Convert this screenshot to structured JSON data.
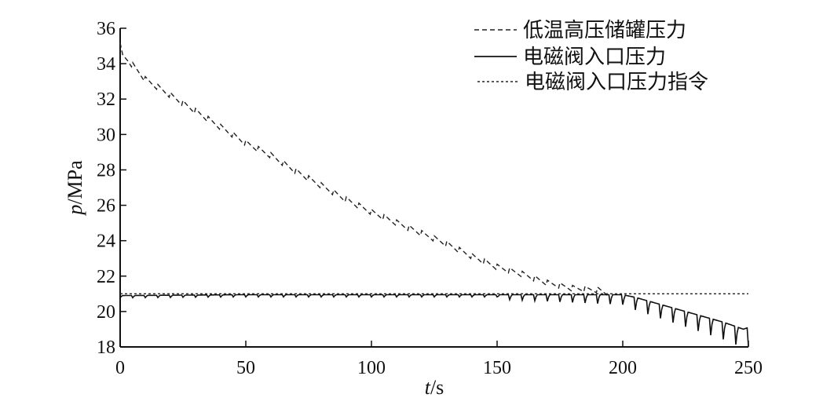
{
  "chart_data": {
    "type": "line",
    "title": "",
    "xlabel": {
      "var": "t",
      "unit": "/s"
    },
    "ylabel": {
      "var": "p",
      "unit": "/MPa"
    },
    "xlim": [
      0,
      250
    ],
    "ylim": [
      18,
      36
    ],
    "xticks": [
      0,
      50,
      100,
      150,
      200,
      250
    ],
    "yticks": [
      18,
      20,
      22,
      24,
      26,
      28,
      30,
      32,
      34,
      36
    ],
    "grid": false,
    "legend": "top-right",
    "series": [
      {
        "name": "低温高压储罐压力",
        "style": "dashed",
        "color": "#222222",
        "x": [
          0,
          1,
          3,
          10,
          20,
          30,
          40,
          50,
          60,
          70,
          80,
          90,
          100,
          110,
          120,
          130,
          140,
          150,
          160,
          170,
          180,
          190,
          194
        ],
        "y": [
          35.0,
          34.4,
          34.2,
          33.1,
          32.2,
          31.3,
          30.4,
          29.5,
          28.8,
          27.9,
          27.1,
          26.3,
          25.6,
          25.0,
          24.4,
          23.8,
          23.1,
          22.5,
          22.1,
          21.6,
          21.3,
          21.2,
          21.0
        ],
        "ripple": {
          "period": 5,
          "amplitude": 0.35
        }
      },
      {
        "name": "电磁阀入口压力",
        "style": "solid",
        "color": "#111111",
        "x": [
          0,
          50,
          100,
          150,
          180,
          190,
          195,
          200,
          205,
          210,
          220,
          230,
          240,
          248,
          250
        ],
        "y": [
          20.9,
          20.95,
          20.95,
          20.95,
          20.95,
          20.95,
          20.95,
          20.95,
          20.8,
          20.6,
          20.2,
          19.8,
          19.4,
          19.0,
          19.1
        ],
        "ripple": {
          "period": 5,
          "amplitude": 0.25
        }
      },
      {
        "name": "电磁阀入口压力指令",
        "style": "dotted",
        "color": "#222222",
        "x": [
          0,
          250
        ],
        "y": [
          21.0,
          21.0
        ]
      }
    ]
  }
}
